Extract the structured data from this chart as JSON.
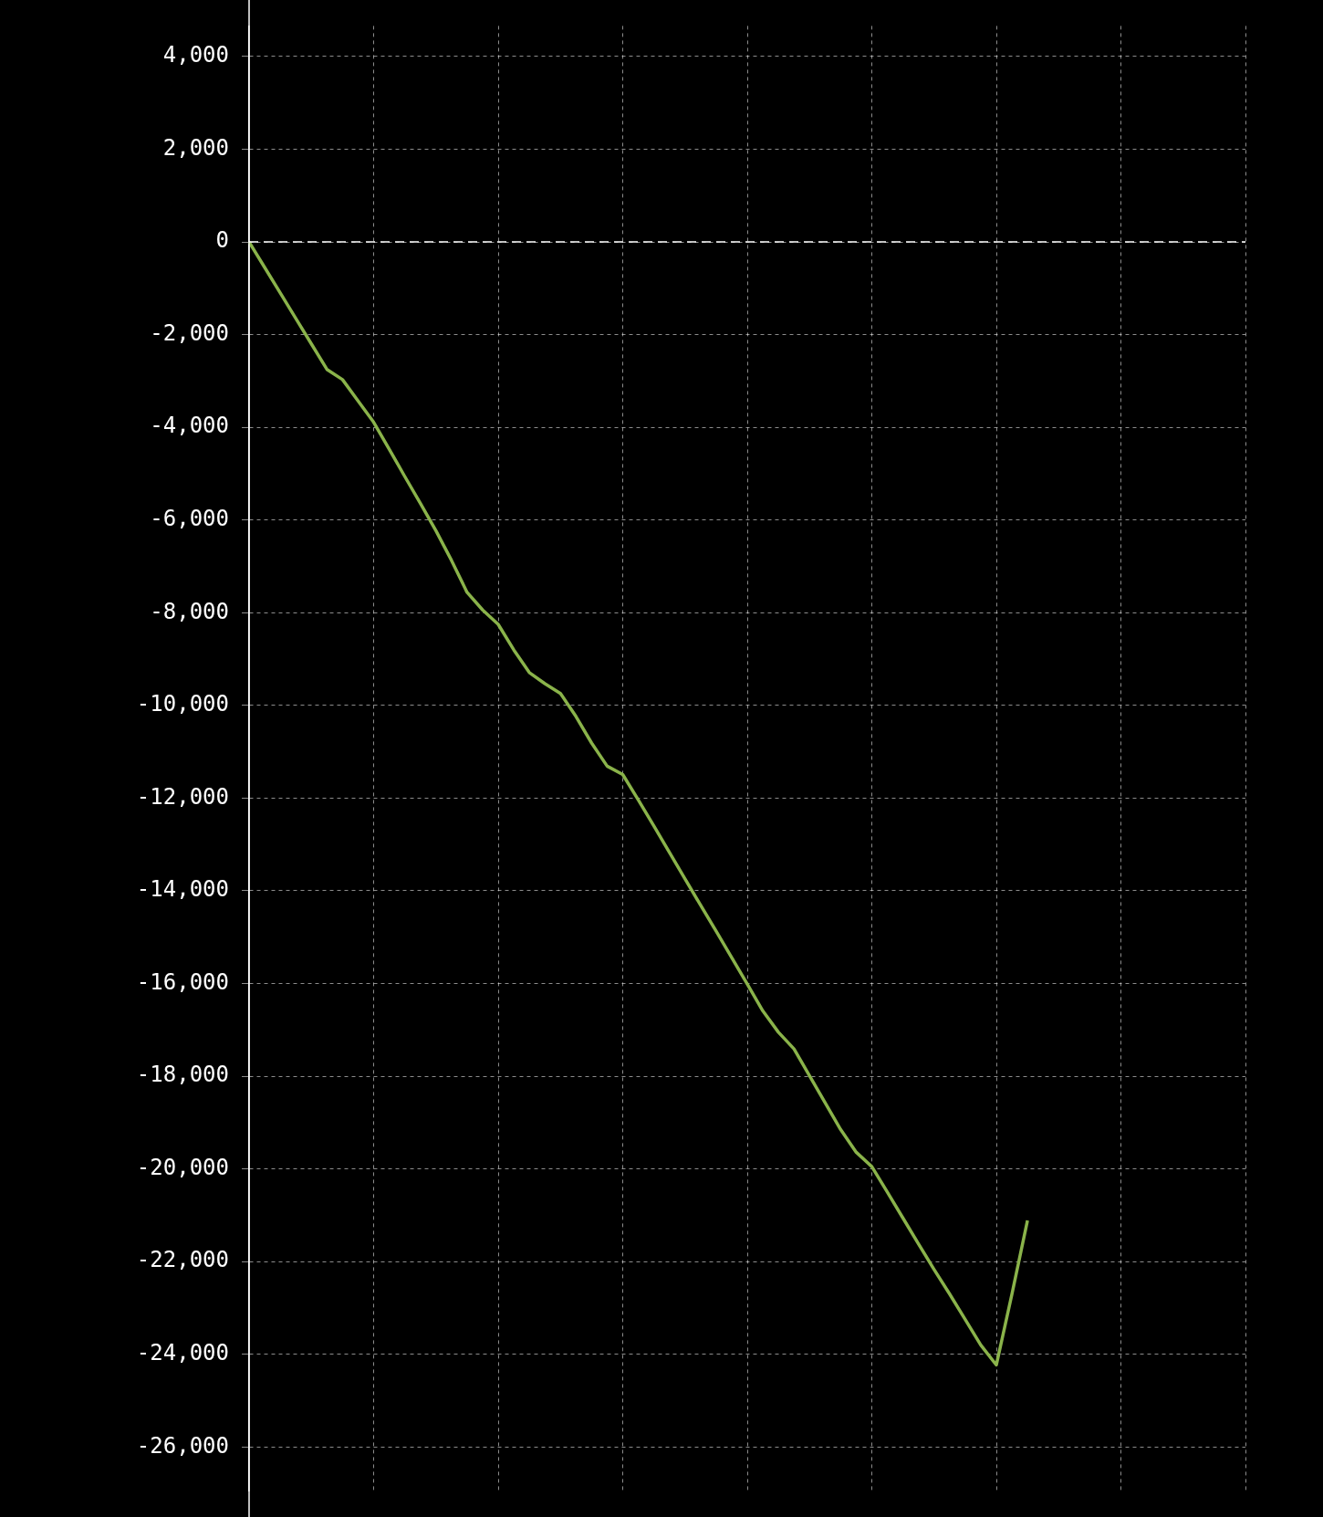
{
  "chart_data": {
    "type": "line",
    "categories": [
      null,
      null,
      null,
      null,
      null,
      null,
      null,
      null,
      null,
      null,
      null,
      null,
      null,
      null,
      null,
      null,
      null,
      null,
      null,
      null,
      null,
      null,
      null,
      null,
      null,
      null,
      null,
      null,
      null,
      null,
      null,
      null,
      null,
      null,
      null,
      null,
      null,
      null,
      null,
      null,
      null,
      null,
      null,
      null,
      null,
      null,
      null,
      null,
      null,
      null,
      null,
      null,
      null,
      null,
      null,
      null,
      null,
      null,
      null,
      null,
      null,
      null,
      null,
      null,
      null
    ],
    "series": [
      {
        "color": "#8ab34a",
        "values": [
          0,
          -550,
          -1100,
          -1650,
          -2200,
          -2750,
          -2970,
          -3430,
          -3890,
          -4470,
          -5060,
          -5640,
          -6230,
          -6870,
          -7560,
          -7940,
          -8250,
          -8800,
          -9290,
          -9530,
          -9740,
          -10240,
          -10810,
          -11310,
          -11490,
          -12040,
          -12600,
          -13170,
          -13740,
          -14310,
          -14870,
          -15440,
          -16010,
          -16590,
          -17050,
          -17410,
          -17990,
          -18570,
          -19150,
          -19640,
          -19950,
          -20500,
          -21060,
          -21620,
          -22170,
          -22700,
          -23250,
          -23800,
          -24230,
          -22700,
          -21110,
          null,
          null,
          null,
          null,
          null,
          null,
          null,
          null,
          null,
          null,
          null,
          null,
          null,
          null
        ]
      }
    ],
    "ylim": [
      -26950,
      4660
    ],
    "yticks": [
      {
        "value": 4000,
        "label": "4,000"
      },
      {
        "value": 2000,
        "label": "2,000"
      },
      {
        "value": 0,
        "label": "0"
      },
      {
        "value": -2000,
        "label": "-2,000"
      },
      {
        "value": -4000,
        "label": "-4,000"
      },
      {
        "value": -6000,
        "label": "-6,000"
      },
      {
        "value": -8000,
        "label": "-8,000"
      },
      {
        "value": -10000,
        "label": "-10,000"
      },
      {
        "value": -12000,
        "label": "-12,000"
      },
      {
        "value": -14000,
        "label": "-14,000"
      },
      {
        "value": -16000,
        "label": "-16,000"
      },
      {
        "value": -18000,
        "label": "-18,000"
      },
      {
        "value": -20000,
        "label": "-20,000"
      },
      {
        "value": -22000,
        "label": "-22,000"
      },
      {
        "value": -24000,
        "label": "-24,000"
      },
      {
        "value": -26000,
        "label": "-26,000"
      }
    ],
    "ref_lines": [
      {
        "axis": "y",
        "value": 0,
        "color": "#ffffff",
        "line_style": "dashed"
      }
    ],
    "grid": true,
    "tick_labels": "y",
    "marker": "none",
    "line_style": "solid",
    "legend": false
  }
}
